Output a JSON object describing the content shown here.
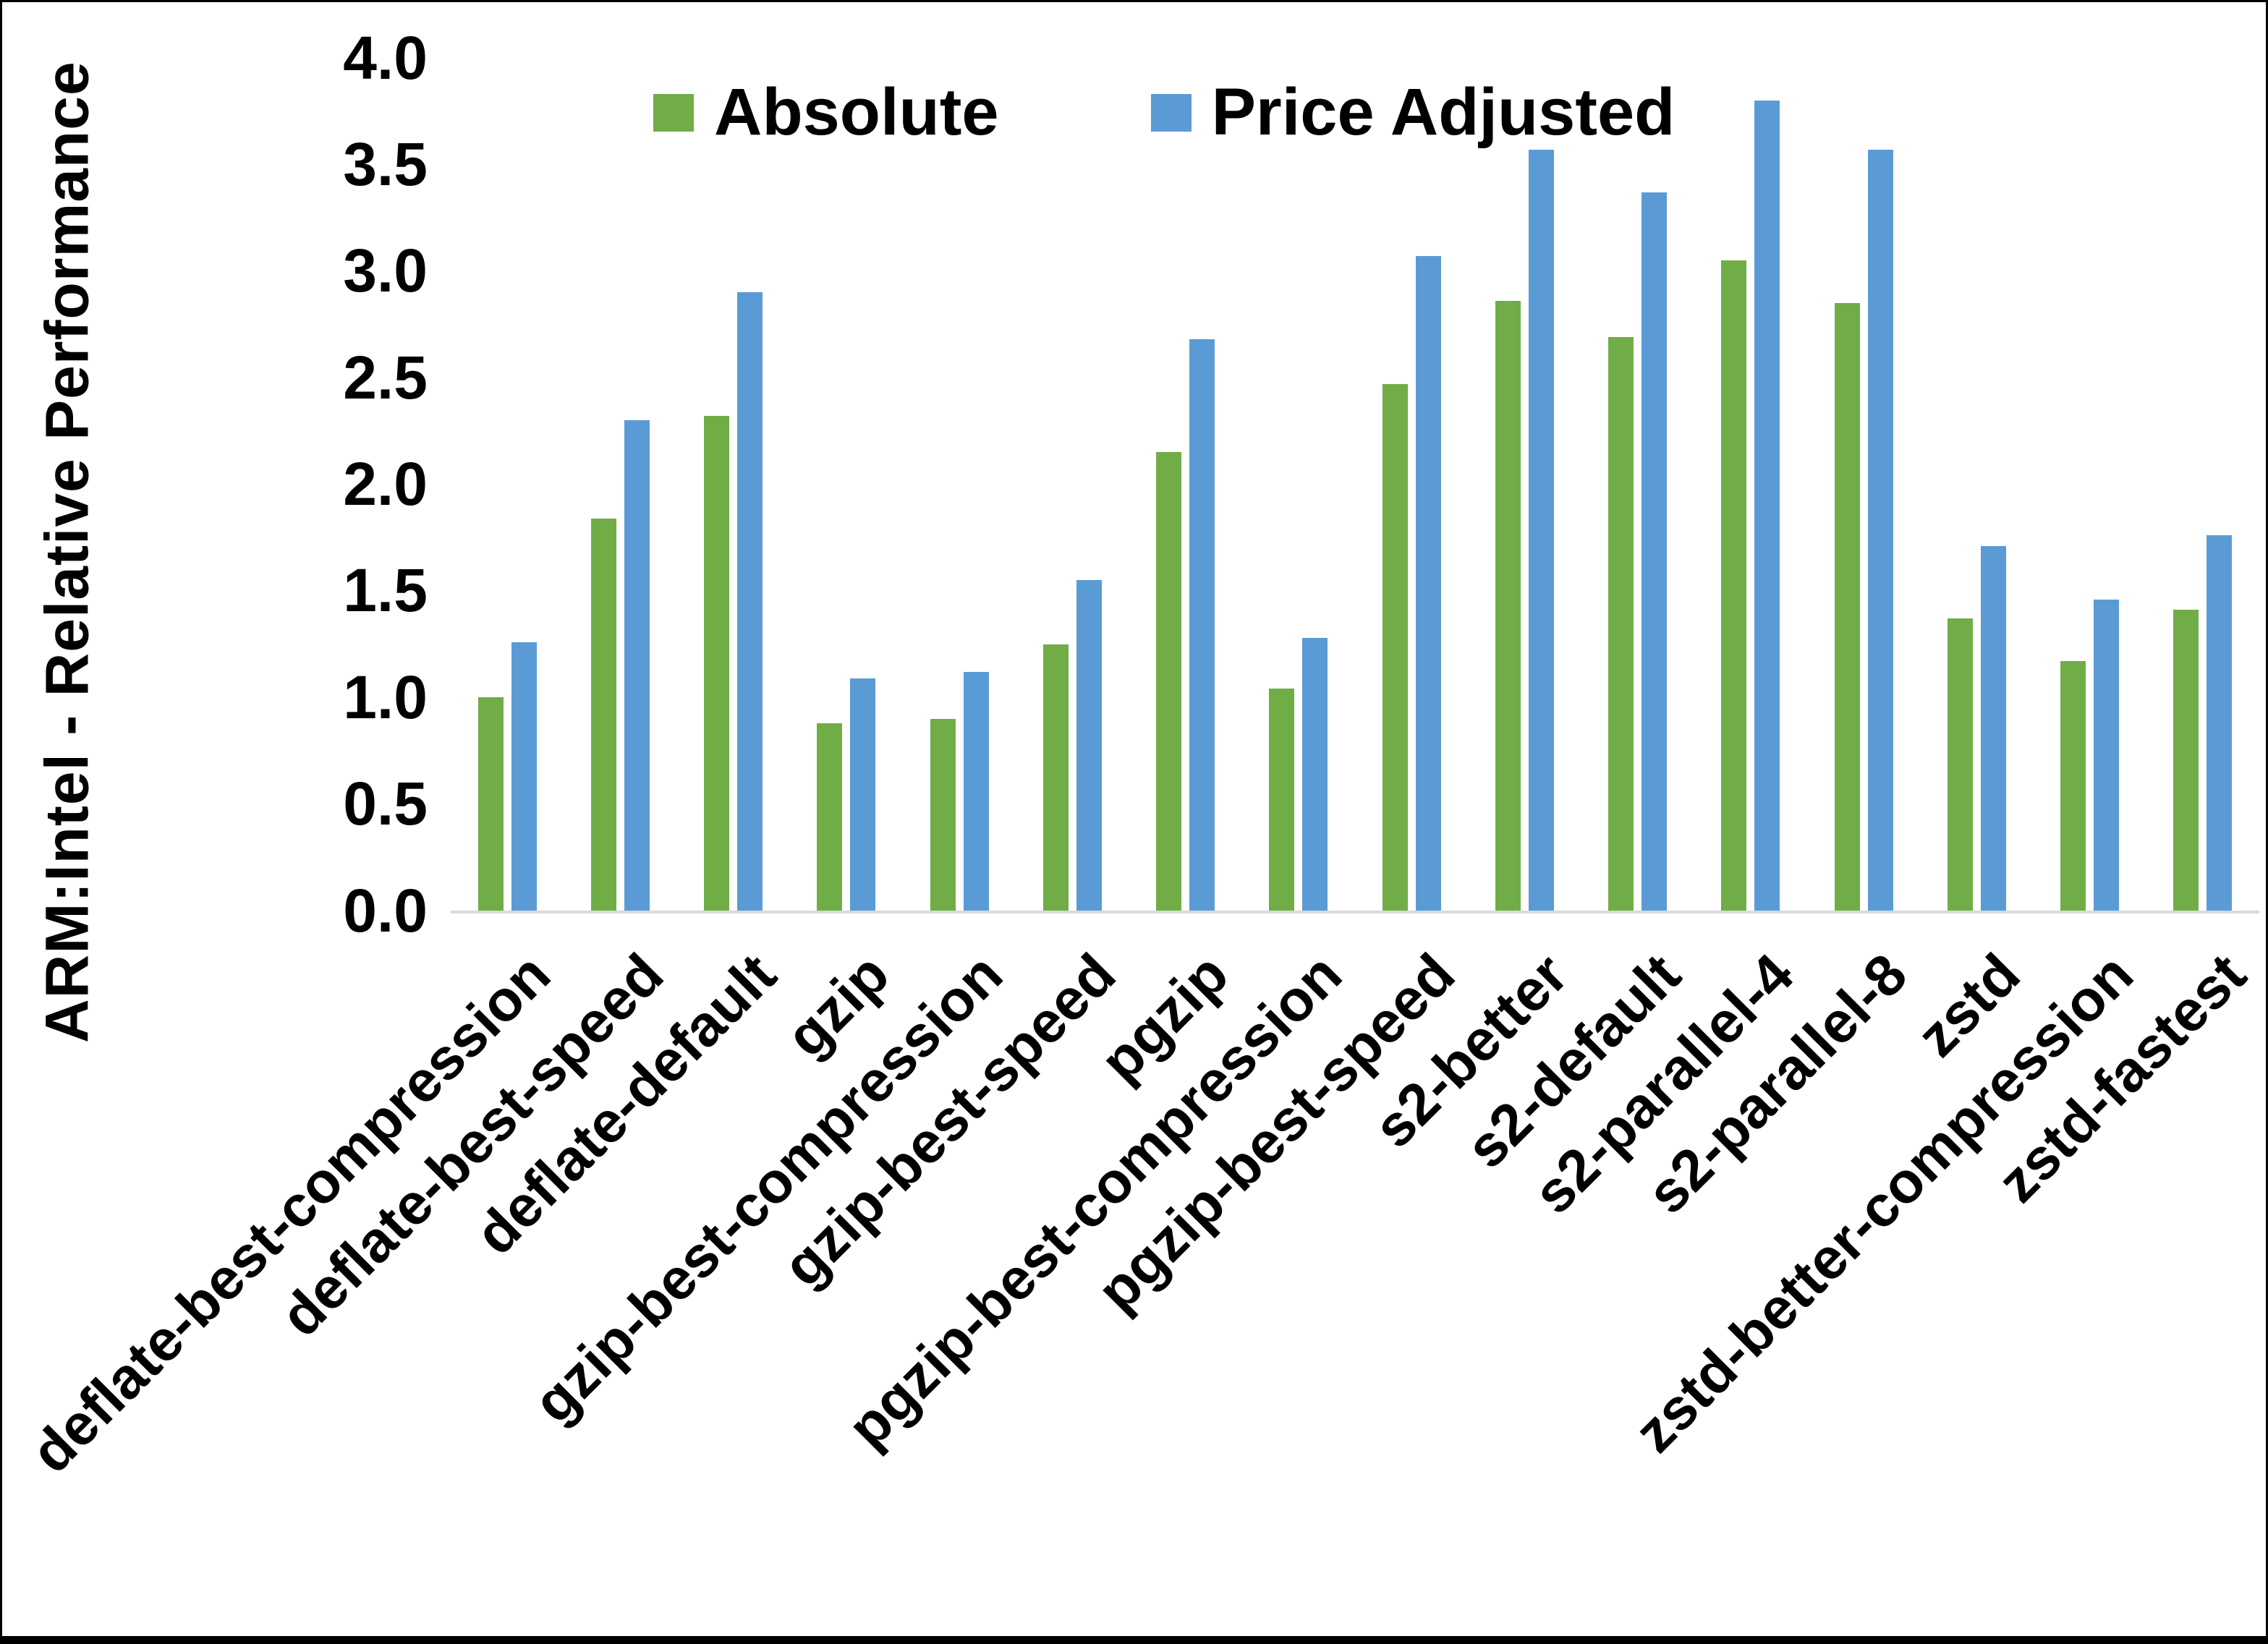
{
  "frame": {
    "border_color": "#000000",
    "background": "#ffffff"
  },
  "chart_data": {
    "type": "bar",
    "title": "",
    "xlabel": "",
    "ylabel": "ARM:Intel - Relative Performance",
    "ylim": [
      0.0,
      4.0
    ],
    "ytick_step": 0.5,
    "yticks_top_to_bottom": [
      "4.0",
      "3.5",
      "3.0",
      "2.5",
      "2.0",
      "1.5",
      "1.0",
      "0.5",
      "0.0"
    ],
    "grid": "off",
    "axis_line_color": "#d9d9d9",
    "legend_position": "top-center",
    "categories": [
      "deflate-best-compression",
      "deflate-best-speed",
      "deflate-default",
      "gzip",
      "gzip-best-compression",
      "gzip-best-speed",
      "pgzip",
      "pgzip-best-compression",
      "pgzip-best-speed",
      "s2-better",
      "s2-default",
      "s2-parallel-4",
      "s2-parallel-8",
      "zstd",
      "zstd-better-compression",
      "zstd-fastest"
    ],
    "series": [
      {
        "name": "Absolute",
        "color": "#70AD47",
        "values": [
          1.0,
          1.84,
          2.32,
          0.88,
          0.9,
          1.25,
          2.15,
          1.04,
          2.47,
          2.86,
          2.69,
          3.05,
          2.85,
          1.37,
          1.17,
          1.41
        ]
      },
      {
        "name": "Price Adjusted",
        "color": "#5B9BD5",
        "values": [
          1.26,
          2.3,
          2.9,
          1.09,
          1.12,
          1.55,
          2.68,
          1.28,
          3.07,
          3.57,
          3.37,
          3.8,
          3.57,
          1.71,
          1.46,
          1.76
        ]
      }
    ]
  }
}
